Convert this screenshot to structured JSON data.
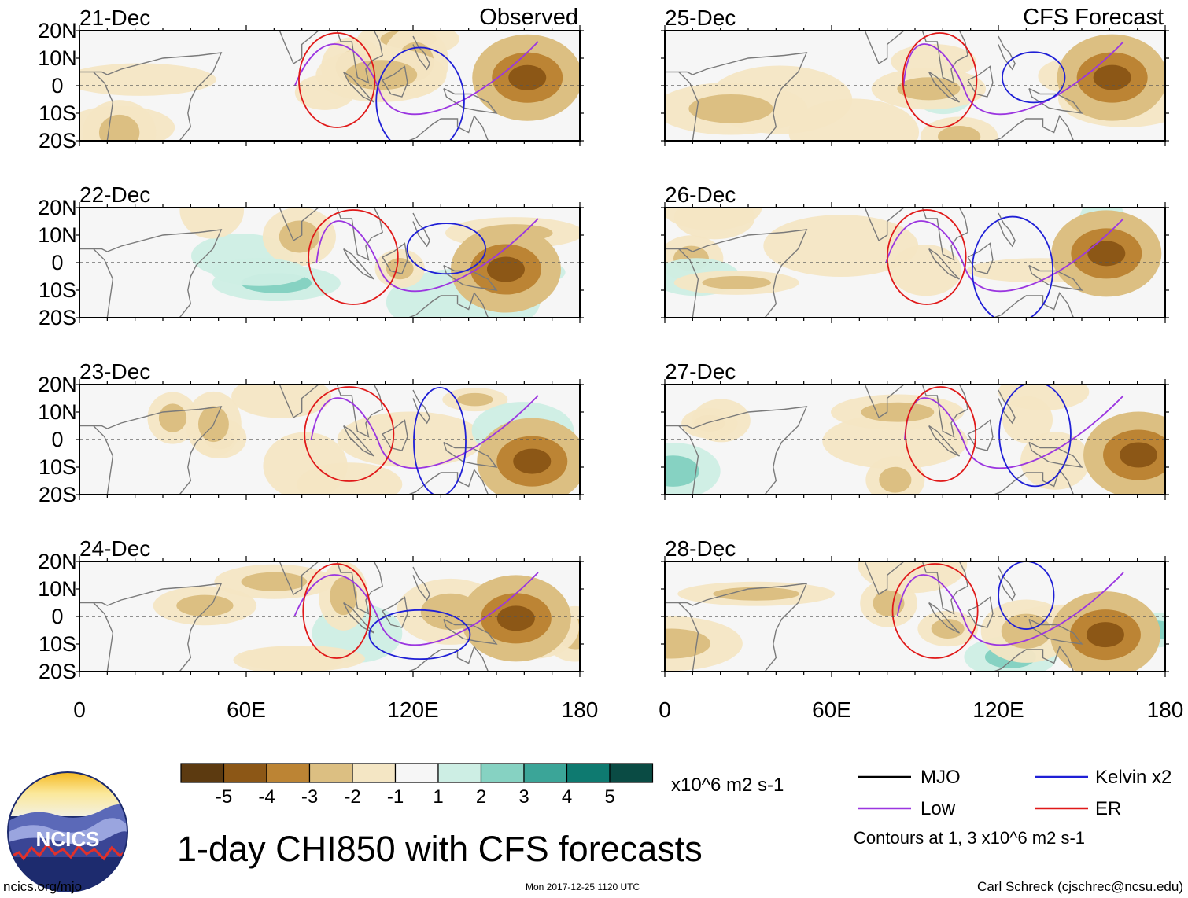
{
  "chart_data": {
    "type": "heatmap",
    "title": "1-day CHI850 with CFS forecasts",
    "x_ticks": [
      "0",
      "60E",
      "120E",
      "180"
    ],
    "y_ticks": [
      "20N",
      "10N",
      "0",
      "10S",
      "20S"
    ],
    "x_range": [
      0,
      180
    ],
    "y_range": [
      -20,
      20
    ],
    "left_header": "Observed",
    "right_header": "CFS Forecast",
    "panels": [
      {
        "date": "21-Dec",
        "column": "left",
        "row": 0
      },
      {
        "date": "22-Dec",
        "column": "left",
        "row": 1
      },
      {
        "date": "23-Dec",
        "column": "left",
        "row": 2
      },
      {
        "date": "24-Dec",
        "column": "left",
        "row": 3
      },
      {
        "date": "25-Dec",
        "column": "right",
        "row": 0
      },
      {
        "date": "26-Dec",
        "column": "right",
        "row": 1
      },
      {
        "date": "27-Dec",
        "column": "right",
        "row": 2
      },
      {
        "date": "28-Dec",
        "column": "right",
        "row": 3
      }
    ],
    "colorbar": {
      "colors": [
        "#5c3a10",
        "#8c5716",
        "#bc8434",
        "#dcbf82",
        "#f4e6c4",
        "#f6f6f6",
        "#cdeee4",
        "#86d2c2",
        "#3ba598",
        "#0e7a70",
        "#0a4b44"
      ],
      "labels": [
        "-5",
        "-4",
        "-3",
        "-2",
        "-1",
        "1",
        "2",
        "3",
        "4",
        "5"
      ],
      "units": "x10^6 m2 s-1"
    },
    "legend": {
      "items": [
        {
          "label": "MJO",
          "color": "#000000"
        },
        {
          "label": "Kelvin x2",
          "color": "#1f1fd6"
        },
        {
          "label": "Low",
          "color": "#9b36e0"
        },
        {
          "label": "ER",
          "color": "#e01919"
        }
      ],
      "note": "Contours at 1, 3 x10^6 m2 s-1"
    }
  },
  "logo": {
    "text": "NCICS"
  },
  "footer": {
    "site": "ncics.org/mjo",
    "timestamp": "Mon 2017-12-25 1120 UTC",
    "author": "Carl Schreck (cjschrec@ncsu.edu)"
  }
}
